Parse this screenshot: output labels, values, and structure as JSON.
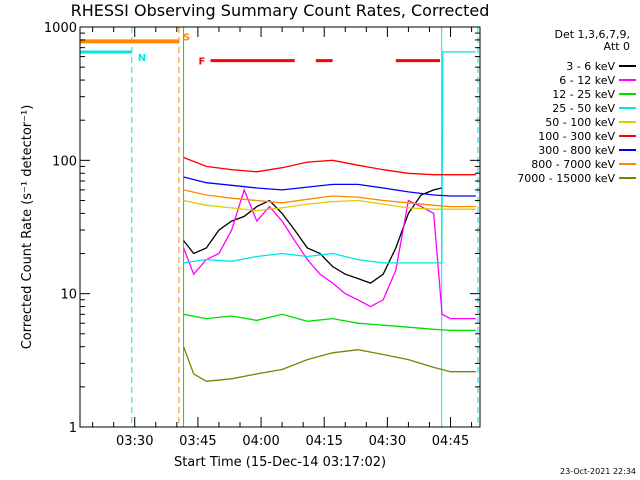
{
  "chart_data": {
    "type": "line",
    "title": "RHESSI Observing Summary Count Rates, Corrected",
    "xlabel": "Start Time (15-Dec-14 03:17:02)",
    "ylabel": "Corrected Count Rate (s⁻¹ detector⁻¹)",
    "yscale": "log",
    "ylim": [
      1,
      1000
    ],
    "xlim_minutes": [
      0,
      95
    ],
    "y_ticks": [
      {
        "value": 1,
        "label": "1"
      },
      {
        "value": 10,
        "label": "10"
      },
      {
        "value": 100,
        "label": "100"
      },
      {
        "value": 1000,
        "label": "1000"
      }
    ],
    "x_ticks": [
      {
        "minute": 13,
        "label": "03:30"
      },
      {
        "minute": 28,
        "label": "03:45"
      },
      {
        "minute": 43,
        "label": "04:00"
      },
      {
        "minute": 58,
        "label": "04:15"
      },
      {
        "minute": 73,
        "label": "04:30"
      },
      {
        "minute": 88,
        "label": "04:45"
      }
    ],
    "legend_placement": "right",
    "legend_header": [
      "Det 1,3,6,7,9,",
      "Att 0"
    ],
    "data_start_minute": 24.6,
    "series": [
      {
        "name": "3 - 6 keV",
        "color": "#000000",
        "x": [
          24.6,
          27,
          30,
          33,
          36,
          39,
          42,
          45,
          48,
          51,
          54,
          57,
          60,
          63,
          66,
          69,
          72,
          75,
          78,
          81,
          84,
          85.9
        ],
        "y": [
          25,
          20,
          22,
          30,
          35,
          38,
          45,
          50,
          40,
          30,
          22,
          20,
          16,
          14,
          13,
          12,
          14,
          22,
          40,
          55,
          60,
          62
        ]
      },
      {
        "name": "6 - 12 keV",
        "color": "#ff00ff",
        "x": [
          24.6,
          27,
          30,
          33,
          36,
          39,
          42,
          45,
          48,
          51,
          54,
          57,
          60,
          63,
          66,
          69,
          72,
          75,
          78,
          81,
          84,
          86,
          88,
          90,
          92,
          94
        ],
        "y": [
          22,
          14,
          18,
          20,
          30,
          60,
          35,
          45,
          35,
          25,
          18,
          14,
          12,
          10,
          9,
          8,
          9,
          15,
          50,
          45,
          40,
          7,
          6.5,
          6.5,
          6.5,
          6.5
        ]
      },
      {
        "name": "12 - 25 keV",
        "color": "#00dd00",
        "x": [
          24.6,
          30,
          36,
          42,
          48,
          54,
          60,
          66,
          72,
          78,
          84,
          88,
          94
        ],
        "y": [
          7,
          6.5,
          6.8,
          6.3,
          7,
          6.2,
          6.5,
          6.0,
          5.8,
          5.6,
          5.4,
          5.3,
          5.3
        ]
      },
      {
        "name": "25 - 50 keV",
        "color": "#00e5e5",
        "x": [
          24.6,
          30,
          36,
          42,
          48,
          54,
          60,
          66,
          72,
          78,
          84,
          85.9,
          86.2,
          88,
          94
        ],
        "y": [
          17,
          18,
          17.5,
          19,
          20,
          19,
          20,
          18,
          17,
          17,
          17,
          17,
          650,
          650,
          650
        ]
      },
      {
        "name": "50 - 100 keV",
        "color": "#ddcc00",
        "x": [
          24.6,
          30,
          36,
          42,
          48,
          54,
          60,
          66,
          72,
          78,
          84,
          88,
          94
        ],
        "y": [
          50,
          46,
          44,
          42,
          44,
          47,
          49,
          50,
          47,
          44,
          43,
          43,
          43
        ]
      },
      {
        "name": "100 - 300 keV",
        "color": "#ff0000",
        "x": [
          24.6,
          30,
          36,
          42,
          48,
          54,
          60,
          66,
          72,
          78,
          84,
          88,
          94
        ],
        "y": [
          105,
          90,
          85,
          82,
          88,
          97,
          100,
          92,
          85,
          80,
          78,
          78,
          78
        ]
      },
      {
        "name": "300 - 800 keV",
        "color": "#0000ff",
        "x": [
          24.6,
          30,
          36,
          42,
          48,
          54,
          60,
          66,
          72,
          78,
          84,
          88,
          94
        ],
        "y": [
          75,
          68,
          65,
          62,
          60,
          63,
          66,
          66,
          62,
          58,
          55,
          54,
          54
        ]
      },
      {
        "name": "800 - 7000 keV",
        "color": "#ff8800",
        "x": [
          24.6,
          30,
          36,
          42,
          48,
          54,
          60,
          66,
          72,
          78,
          84,
          88,
          94
        ],
        "y": [
          60,
          55,
          52,
          50,
          48,
          51,
          54,
          53,
          50,
          48,
          46,
          45,
          45
        ]
      },
      {
        "name": "7000 - 15000 keV",
        "color": "#808000",
        "x": [
          24.6,
          27,
          30,
          36,
          42,
          48,
          54,
          60,
          66,
          72,
          78,
          84,
          88,
          94
        ],
        "y": [
          4,
          2.5,
          2.2,
          2.3,
          2.5,
          2.7,
          3.2,
          3.6,
          3.8,
          3.5,
          3.2,
          2.8,
          2.6,
          2.6
        ]
      }
    ],
    "night_intervals": [
      {
        "start": 0,
        "end": 12.3,
        "level": 650
      }
    ],
    "night_label": "N",
    "night_boundaries_minutes": [
      12.3,
      94.5
    ],
    "saa_interval": {
      "start": 0,
      "end": 23.5,
      "level": 780,
      "label": "S"
    },
    "saa_boundary_minute": 23.5,
    "flare_label": "F",
    "flare_intervals": [
      {
        "start": 31,
        "end": 51
      },
      {
        "start": 56,
        "end": 60
      },
      {
        "start": 75,
        "end": 85.5
      }
    ],
    "flare_level": 560,
    "data_end_minute": 85.9
  },
  "footer": {
    "timestamp": "23-Oct-2021 22:34"
  },
  "colors": {
    "axes": "#000000",
    "night": "#00e5e5",
    "saa": "#ff8800",
    "flare": "#ff0000",
    "data_start_line": "#00dd00",
    "data_end_line": "#00e5e5"
  }
}
